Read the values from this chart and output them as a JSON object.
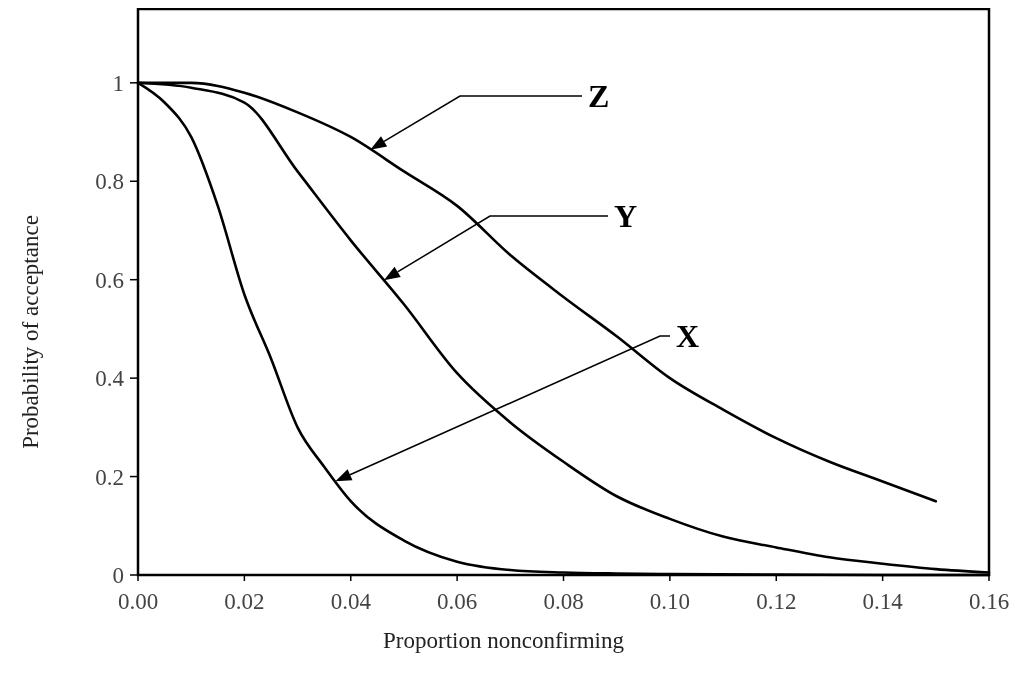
{
  "chart_data": {
    "type": "line",
    "xlabel": "Proportion nonconfirming",
    "ylabel": "Probability of acceptance",
    "xlim": [
      0,
      0.16
    ],
    "ylim": [
      0,
      1.15
    ],
    "xticks": [
      {
        "value": 0,
        "label": "0.00"
      },
      {
        "value": 0.02,
        "label": "0.02"
      },
      {
        "value": 0.04,
        "label": "0.04"
      },
      {
        "value": 0.06,
        "label": "0.06"
      },
      {
        "value": 0.08,
        "label": "0.08"
      },
      {
        "value": 0.1,
        "label": "0.10"
      },
      {
        "value": 0.12,
        "label": "0.12"
      },
      {
        "value": 0.14,
        "label": "0.14"
      },
      {
        "value": 0.16,
        "label": "0.16"
      }
    ],
    "yticks": [
      0,
      0.2,
      0.4,
      0.6,
      0.8,
      1
    ],
    "annotations": [
      "X",
      "Y",
      "Z"
    ],
    "grid": false,
    "marker": "none",
    "line_style": "solid",
    "series": [
      {
        "color": "#000000",
        "x": [
          0,
          0.005,
          0.01,
          0.015,
          0.02,
          0.025,
          0.03,
          0.035,
          0.04,
          0.05,
          0.06,
          0.07,
          0.08,
          0.09,
          0.1,
          0.12,
          0.14,
          0.16
        ],
        "values": [
          1,
          0.96,
          0.89,
          0.75,
          0.57,
          0.44,
          0.3,
          0.22,
          0.15,
          0.07,
          0.027,
          0.01,
          0.005,
          0.003,
          0.002,
          0.001,
          0,
          0
        ]
      },
      {
        "color": "#000000",
        "x": [
          0,
          0.01,
          0.02,
          0.03,
          0.04,
          0.05,
          0.06,
          0.07,
          0.08,
          0.09,
          0.1,
          0.11,
          0.12,
          0.13,
          0.14,
          0.15,
          0.16
        ],
        "values": [
          1,
          0.99,
          0.96,
          0.82,
          0.68,
          0.55,
          0.41,
          0.31,
          0.23,
          0.16,
          0.114,
          0.078,
          0.056,
          0.036,
          0.023,
          0.012,
          0.005
        ]
      },
      {
        "color": "#000000",
        "x": [
          0,
          0.01,
          0.02,
          0.03,
          0.04,
          0.05,
          0.06,
          0.07,
          0.08,
          0.09,
          0.1,
          0.11,
          0.12,
          0.13,
          0.14,
          0.15
        ],
        "values": [
          1,
          1,
          0.98,
          0.94,
          0.89,
          0.82,
          0.75,
          0.65,
          0.565,
          0.485,
          0.4,
          0.336,
          0.278,
          0.23,
          0.19,
          0.15
        ]
      }
    ]
  }
}
